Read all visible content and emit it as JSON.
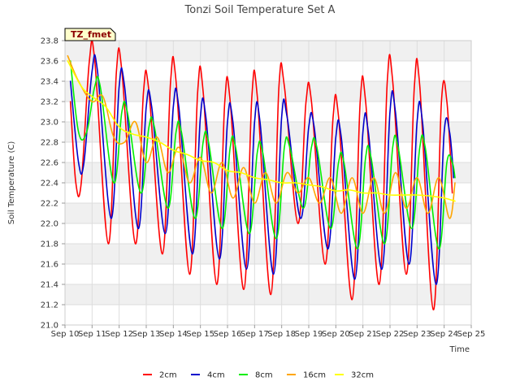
{
  "chart_data": {
    "type": "line",
    "title": "Tonzi Soil Temperature Set A",
    "xlabel": "Time",
    "ylabel": "Soil Temperature (C)",
    "tag": "TZ_fmet",
    "ylim": [
      21.0,
      23.8
    ],
    "yticks": [
      "21.0",
      "21.2",
      "21.4",
      "21.6",
      "21.8",
      "22.0",
      "22.2",
      "22.4",
      "22.6",
      "22.8",
      "23.0",
      "23.2",
      "23.4",
      "23.6",
      "23.8"
    ],
    "xlim_days": [
      10,
      25
    ],
    "xticks": [
      "Sep 10",
      "Sep 11",
      "Sep 12",
      "Sep 13",
      "Sep 14",
      "Sep 15",
      "Sep 16",
      "Sep 17",
      "Sep 18",
      "Sep 19",
      "Sep 20",
      "Sep 21",
      "Sep 22",
      "Sep 23",
      "Sep 24",
      "Sep 25"
    ],
    "grid": true,
    "legend_position": "bottom",
    "series": [
      {
        "name": "2cm",
        "color": "#ff0000",
        "x": [
          10.2,
          10.4,
          10.6,
          10.9,
          11.1,
          11.6,
          11.9,
          12.1,
          12.6,
          12.9,
          13.1,
          13.6,
          13.9,
          14.1,
          14.6,
          14.9,
          15.1,
          15.6,
          15.9,
          16.1,
          16.6,
          16.9,
          17.1,
          17.6,
          17.9,
          18.1,
          18.6,
          18.9,
          19.1,
          19.6,
          19.9,
          20.1,
          20.6,
          20.9,
          21.1,
          21.6,
          21.9,
          22.1,
          22.6,
          22.9,
          23.1,
          23.6,
          23.9,
          24.1,
          24.3
        ],
        "y": [
          23.2,
          22.4,
          22.4,
          23.6,
          23.6,
          21.8,
          23.5,
          23.5,
          21.8,
          23.3,
          23.3,
          21.7,
          23.4,
          23.4,
          21.5,
          23.3,
          23.3,
          21.4,
          23.2,
          23.2,
          21.35,
          23.25,
          23.25,
          21.3,
          23.35,
          23.35,
          22.0,
          23.2,
          23.2,
          21.6,
          23.05,
          23.05,
          21.25,
          23.2,
          23.2,
          21.4,
          23.4,
          23.4,
          21.5,
          23.35,
          23.35,
          21.15,
          23.2,
          23.2,
          22.3
        ]
      },
      {
        "name": "4cm",
        "color": "#0000cc",
        "x": [
          10.2,
          10.5,
          10.7,
          11.0,
          11.2,
          11.7,
          12.0,
          12.2,
          12.7,
          13.0,
          13.2,
          13.7,
          14.0,
          14.2,
          14.7,
          15.0,
          15.2,
          15.7,
          16.0,
          16.2,
          16.7,
          17.0,
          17.2,
          17.7,
          18.0,
          18.2,
          18.7,
          19.0,
          19.2,
          19.7,
          20.0,
          20.2,
          20.7,
          21.0,
          21.2,
          21.7,
          22.0,
          22.2,
          22.7,
          23.0,
          23.2,
          23.7,
          24.0,
          24.2,
          24.35
        ],
        "y": [
          23.4,
          22.6,
          22.6,
          23.5,
          23.5,
          22.05,
          23.35,
          23.35,
          21.95,
          23.15,
          23.15,
          21.9,
          23.15,
          23.15,
          21.7,
          23.05,
          23.05,
          21.65,
          23.0,
          23.0,
          21.55,
          23.0,
          23.0,
          21.5,
          23.05,
          23.05,
          22.05,
          22.95,
          22.95,
          21.75,
          22.85,
          22.85,
          21.45,
          22.9,
          22.9,
          21.55,
          23.1,
          23.1,
          21.6,
          23.0,
          23.0,
          21.4,
          22.9,
          22.9,
          22.45
        ]
      },
      {
        "name": "8cm",
        "color": "#00ee00",
        "x": [
          10.2,
          10.5,
          10.8,
          11.1,
          11.3,
          11.8,
          12.1,
          12.3,
          12.8,
          13.1,
          13.3,
          13.8,
          14.1,
          14.3,
          14.8,
          15.1,
          15.3,
          15.8,
          16.1,
          16.3,
          16.8,
          17.1,
          17.3,
          17.8,
          18.1,
          18.3,
          18.8,
          19.1,
          19.3,
          19.8,
          20.1,
          20.3,
          20.8,
          21.1,
          21.3,
          21.8,
          22.1,
          22.3,
          22.8,
          23.1,
          23.3,
          23.8,
          24.1,
          24.3,
          24.4
        ],
        "y": [
          23.6,
          22.9,
          22.9,
          23.35,
          23.35,
          22.4,
          23.1,
          23.1,
          22.3,
          22.95,
          22.95,
          22.15,
          22.9,
          22.9,
          22.05,
          22.8,
          22.8,
          21.95,
          22.75,
          22.75,
          21.9,
          22.7,
          22.7,
          21.85,
          22.75,
          22.75,
          22.15,
          22.75,
          22.75,
          21.95,
          22.6,
          22.6,
          21.75,
          22.65,
          22.65,
          21.8,
          22.75,
          22.75,
          21.95,
          22.75,
          22.75,
          21.75,
          22.6,
          22.6,
          22.45
        ]
      },
      {
        "name": "16cm",
        "color": "#ffa500",
        "x": [
          10.1,
          10.5,
          11.0,
          11.4,
          11.8,
          12.2,
          12.6,
          13.0,
          13.4,
          13.8,
          14.2,
          14.6,
          15.0,
          15.4,
          15.8,
          16.2,
          16.6,
          17.0,
          17.4,
          17.8,
          18.2,
          18.6,
          19.0,
          19.4,
          19.8,
          20.2,
          20.6,
          21.0,
          21.4,
          21.8,
          22.2,
          22.6,
          23.0,
          23.4,
          23.8,
          24.2,
          24.4
        ],
        "y": [
          23.65,
          23.4,
          23.2,
          23.25,
          22.85,
          22.8,
          23.0,
          22.6,
          22.85,
          22.5,
          22.75,
          22.4,
          22.65,
          22.3,
          22.6,
          22.25,
          22.55,
          22.2,
          22.5,
          22.2,
          22.5,
          22.3,
          22.45,
          22.2,
          22.45,
          22.1,
          22.45,
          22.1,
          22.45,
          22.1,
          22.5,
          22.15,
          22.45,
          22.1,
          22.45,
          22.05,
          22.4
        ]
      },
      {
        "name": "32cm",
        "color": "#ffff00",
        "x": [
          10.1,
          10.6,
          11.0,
          11.5,
          12.0,
          12.5,
          13.0,
          13.5,
          14.0,
          14.5,
          15.0,
          15.5,
          16.0,
          16.5,
          17.0,
          17.5,
          18.0,
          18.5,
          19.0,
          19.5,
          20.0,
          20.5,
          21.0,
          21.5,
          22.0,
          22.5,
          23.0,
          23.5,
          24.0,
          24.4
        ],
        "y": [
          23.6,
          23.35,
          23.25,
          23.15,
          22.95,
          22.88,
          22.85,
          22.8,
          22.72,
          22.68,
          22.62,
          22.6,
          22.52,
          22.5,
          22.45,
          22.43,
          22.4,
          22.4,
          22.38,
          22.36,
          22.32,
          22.33,
          22.3,
          22.3,
          22.28,
          22.28,
          22.28,
          22.27,
          22.25,
          22.22
        ]
      }
    ]
  }
}
